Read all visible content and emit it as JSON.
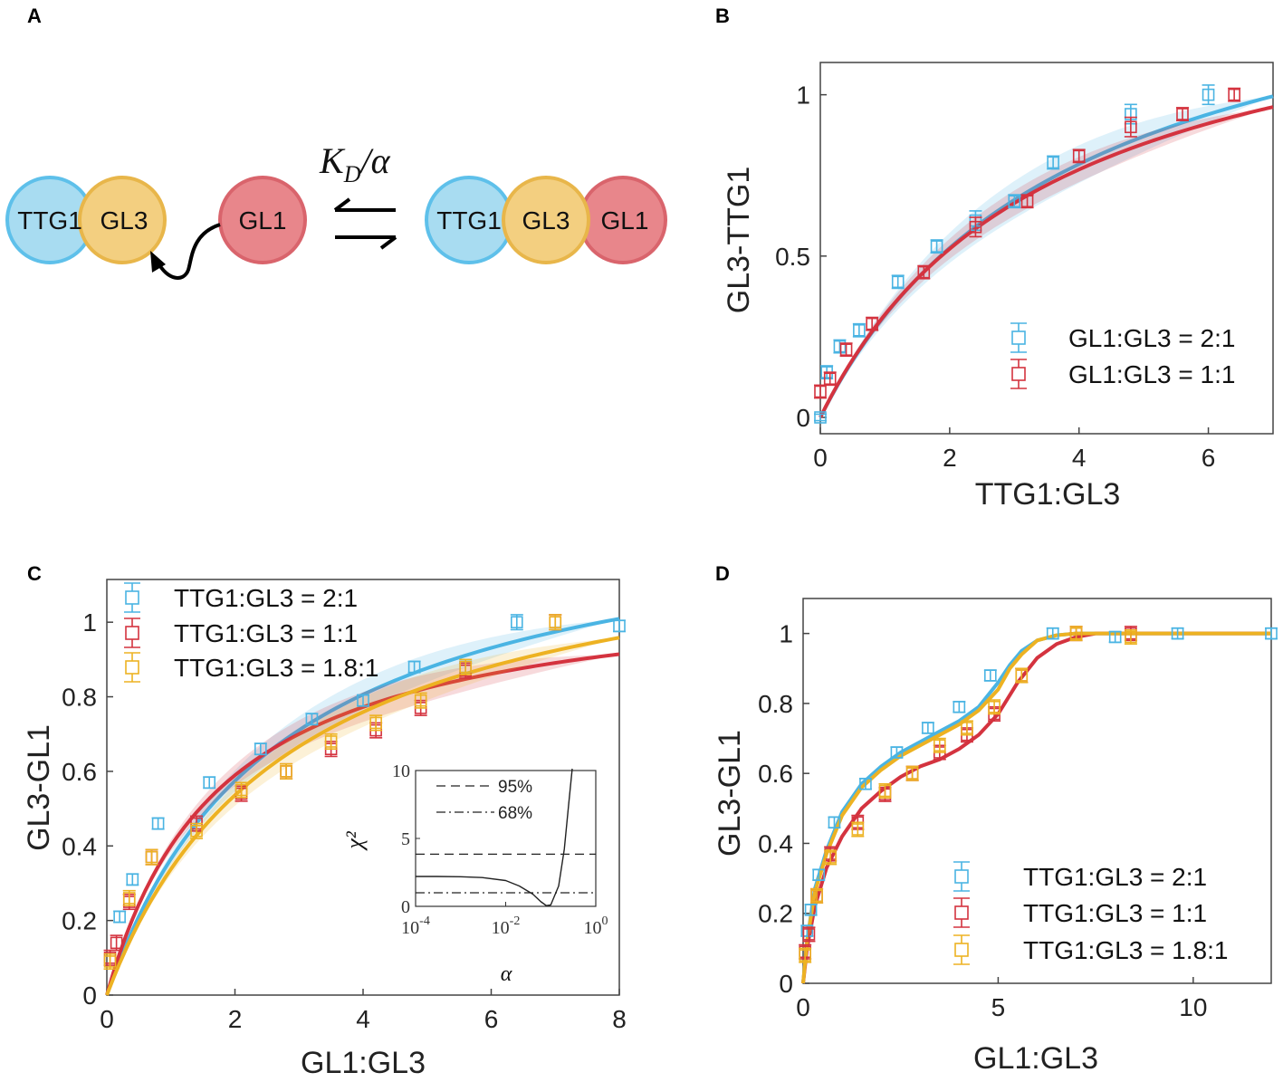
{
  "panels": {
    "A": {
      "letter": "A",
      "left_complex": [
        "TTG1",
        "GL3"
      ],
      "free_protein": "GL1",
      "right_complex": [
        "TTG1",
        "GL3",
        "GL1"
      ],
      "rate_label": {
        "K": "K",
        "sub": "D",
        "rest": "/α"
      }
    },
    "B": {
      "letter": "B"
    },
    "C": {
      "letter": "C"
    },
    "D": {
      "letter": "D"
    }
  },
  "colors": {
    "cyan": "#4ab4e3",
    "red": "#d4333f",
    "orange": "#edb222",
    "ttg1_fill": "#a8dcf1",
    "ttg1_stroke": "#5ec0ea",
    "gl3_fill": "#f3cf80",
    "gl3_stroke": "#e8b64a",
    "gl1_fill": "#e8868b",
    "gl1_stroke": "#d9646c"
  },
  "chart_data": [
    {
      "id": "B",
      "type": "scatter",
      "title": "",
      "xlabel": "TTG1:GL3",
      "ylabel": "GL3-TTG1",
      "xlim": [
        0,
        7
      ],
      "ylim": [
        0,
        1.1
      ],
      "xticks": [
        0,
        2,
        4,
        6
      ],
      "yticks": [
        0,
        0.5,
        1
      ],
      "xtick_labels": [
        "0",
        "2",
        "4",
        "6"
      ],
      "ytick_labels": [
        "0",
        "0.5",
        "1"
      ],
      "legend": [
        "GL1:GL3 = 2:1",
        "GL1:GL3 = 1:1"
      ],
      "legend_position": "bottom-right",
      "series": [
        {
          "name": "GL1:GL3 = 2:1",
          "color": "cyan",
          "x": [
            0,
            0.1,
            0.3,
            0.6,
            1.2,
            1.8,
            2.4,
            3.0,
            3.6,
            4.8,
            6.0
          ],
          "y": [
            0,
            0.14,
            0.22,
            0.27,
            0.42,
            0.53,
            0.61,
            0.67,
            0.79,
            0.94,
            1.0
          ],
          "err": [
            0.01,
            0.02,
            0.02,
            0.02,
            0.02,
            0.02,
            0.03,
            0.02,
            0.02,
            0.03,
            0.03
          ]
        },
        {
          "name": "GL1:GL3 = 1:1",
          "color": "red",
          "x": [
            0,
            0.15,
            0.4,
            0.8,
            1.6,
            2.4,
            3.2,
            4.0,
            4.8,
            5.6,
            6.4
          ],
          "y": [
            0.08,
            0.12,
            0.21,
            0.29,
            0.45,
            0.59,
            0.67,
            0.81,
            0.9,
            0.94,
            1.0
          ],
          "err": [
            0.02,
            0.02,
            0.02,
            0.02,
            0.02,
            0.03,
            0.02,
            0.02,
            0.03,
            0.02,
            0.02
          ]
        }
      ],
      "fits": [
        {
          "name": "GL1:GL3 = 2:1",
          "color": "cyan",
          "model": "saturation",
          "A": 1.55,
          "K": 3.9,
          "band": 0.06
        },
        {
          "name": "GL1:GL3 = 1:1",
          "color": "red",
          "model": "saturation",
          "A": 1.45,
          "K": 3.55,
          "band": 0.04
        }
      ]
    },
    {
      "id": "C",
      "type": "scatter",
      "title": "",
      "xlabel": "GL1:GL3",
      "ylabel": "GL3-GL1",
      "xlim": [
        0,
        8
      ],
      "ylim": [
        0,
        1.1
      ],
      "xticks": [
        0,
        2,
        4,
        6,
        8
      ],
      "yticks": [
        0,
        0.2,
        0.4,
        0.6,
        0.8,
        1
      ],
      "xtick_labels": [
        "0",
        "2",
        "4",
        "6",
        "8"
      ],
      "ytick_labels": [
        "0",
        "0.2",
        "0.4",
        "0.6",
        "0.8",
        "1"
      ],
      "legend": [
        "TTG1:GL3 = 2:1",
        "TTG1:GL3 = 1:1",
        "TTG1:GL3 = 1.8:1"
      ],
      "legend_position": "top-left",
      "series": [
        {
          "name": "TTG1:GL3 = 2:1",
          "color": "cyan",
          "x": [
            0.2,
            0.4,
            0.8,
            1.6,
            2.4,
            3.2,
            4.0,
            4.8,
            5.6,
            6.4,
            8.0
          ],
          "y": [
            0.21,
            0.31,
            0.46,
            0.57,
            0.66,
            0.74,
            0.79,
            0.88,
            0.88,
            1.0,
            0.99
          ],
          "err": [
            0.015,
            0.015,
            0.015,
            0.015,
            0.015,
            0.015,
            0.015,
            0.015,
            0.015,
            0.02,
            0.015
          ]
        },
        {
          "name": "TTG1:GL3 = 1:1",
          "color": "red",
          "x": [
            0.05,
            0.15,
            0.35,
            0.7,
            1.4,
            2.1,
            2.8,
            3.5,
            4.2,
            4.9,
            5.6,
            7.0
          ],
          "y": [
            0.1,
            0.14,
            0.25,
            0.37,
            0.46,
            0.54,
            0.6,
            0.66,
            0.71,
            0.77,
            0.87,
            1.0
          ],
          "err": [
            0.02,
            0.02,
            0.02,
            0.02,
            0.02,
            0.02,
            0.02,
            0.02,
            0.02,
            0.02,
            0.02,
            0.02
          ]
        },
        {
          "name": "TTG1:GL3 = 1.8:1",
          "color": "orange",
          "x": [
            0.05,
            0.35,
            0.7,
            1.4,
            2.1,
            2.8,
            3.5,
            4.2,
            4.9,
            5.6,
            7.0
          ],
          "y": [
            0.09,
            0.26,
            0.37,
            0.44,
            0.55,
            0.6,
            0.68,
            0.73,
            0.79,
            0.88,
            1.0
          ],
          "err": [
            0.02,
            0.02,
            0.02,
            0.02,
            0.02,
            0.02,
            0.02,
            0.02,
            0.02,
            0.02,
            0.02
          ]
        }
      ],
      "fits": [
        {
          "name": "TTG1:GL3 = 2:1",
          "color": "cyan",
          "model": "saturation",
          "A": 1.35,
          "K": 2.7,
          "band": 0.04
        },
        {
          "name": "TTG1:GL3 = 1:1",
          "color": "red",
          "model": "saturation",
          "A": 1.12,
          "K": 1.8,
          "band": 0.04
        },
        {
          "name": "TTG1:GL3 = 1.8:1",
          "color": "orange",
          "model": "saturation",
          "A": 1.3,
          "K": 2.85,
          "band": 0.04
        }
      ],
      "inset": {
        "type": "line",
        "xlabel": "α",
        "ylabel": "χ²",
        "xscale": "log",
        "xlim": [
          0.0001,
          1
        ],
        "ylim": [
          0,
          10
        ],
        "yticks": [
          0,
          5,
          10
        ],
        "ytick_labels": [
          "0",
          "5",
          "10"
        ],
        "xtick_base": [
          "10",
          "10",
          "10"
        ],
        "xtick_exp": [
          "-4",
          "-2",
          "0"
        ],
        "thresholds": [
          {
            "label": "95%",
            "value": 3.84,
            "style": "dashed"
          },
          {
            "label": "68%",
            "value": 1.0,
            "style": "dashdot"
          }
        ],
        "curve": {
          "alpha": [
            0.0001,
            0.0003,
            0.001,
            0.003,
            0.01,
            0.02,
            0.04,
            0.06,
            0.08,
            0.1,
            0.15,
            0.2,
            0.25,
            0.3
          ],
          "chi2": [
            2.2,
            2.2,
            2.18,
            2.12,
            1.9,
            1.5,
            0.9,
            0.35,
            0.05,
            0.1,
            1.5,
            4.2,
            7.5,
            10.5
          ]
        }
      }
    },
    {
      "id": "D",
      "type": "scatter",
      "title": "",
      "xlabel": "GL1:GL3",
      "ylabel": "GL3-GL1",
      "xlim": [
        0,
        12
      ],
      "ylim": [
        0,
        1.1
      ],
      "xticks": [
        0,
        5,
        10
      ],
      "yticks": [
        0,
        0.2,
        0.4,
        0.6,
        0.8,
        1
      ],
      "xtick_labels": [
        "0",
        "5",
        "10"
      ],
      "ytick_labels": [
        "0",
        "0.2",
        "0.4",
        "0.6",
        "0.8",
        "1"
      ],
      "legend": [
        "TTG1:GL3 = 2:1",
        "TTG1:GL3 = 1:1",
        "TTG1:GL3 = 1.8:1"
      ],
      "legend_position": "bottom-right",
      "series": [
        {
          "name": "TTG1:GL3 = 2:1",
          "color": "cyan",
          "x": [
            0.1,
            0.2,
            0.4,
            0.8,
            1.6,
            2.4,
            3.2,
            4.0,
            4.8,
            6.4,
            8.0,
            9.6,
            12.0
          ],
          "y": [
            0.15,
            0.21,
            0.31,
            0.46,
            0.57,
            0.66,
            0.73,
            0.79,
            0.88,
            1.0,
            0.99,
            1.0,
            1.0
          ],
          "err": [
            0.015,
            0.015,
            0.015,
            0.015,
            0.015,
            0.015,
            0.015,
            0.015,
            0.015,
            0.015,
            0.015,
            0.015,
            0.015
          ]
        },
        {
          "name": "TTG1:GL3 = 1:1",
          "color": "red",
          "x": [
            0.05,
            0.15,
            0.35,
            0.7,
            1.4,
            2.1,
            2.8,
            3.5,
            4.2,
            4.9,
            5.6,
            7.0,
            8.4
          ],
          "y": [
            0.09,
            0.14,
            0.25,
            0.37,
            0.46,
            0.54,
            0.6,
            0.66,
            0.71,
            0.77,
            0.88,
            1.0,
            1.0
          ],
          "err": [
            0.02,
            0.02,
            0.02,
            0.02,
            0.02,
            0.02,
            0.02,
            0.02,
            0.02,
            0.02,
            0.02,
            0.02,
            0.02
          ]
        },
        {
          "name": "TTG1:GL3 = 1.8:1",
          "color": "orange",
          "x": [
            0.05,
            0.35,
            0.7,
            1.4,
            2.1,
            2.8,
            3.5,
            4.2,
            4.9,
            5.6,
            7.0,
            8.4
          ],
          "y": [
            0.08,
            0.25,
            0.36,
            0.44,
            0.55,
            0.6,
            0.68,
            0.73,
            0.79,
            0.88,
            1.0,
            0.99
          ],
          "err": [
            0.02,
            0.02,
            0.02,
            0.02,
            0.02,
            0.02,
            0.02,
            0.02,
            0.02,
            0.02,
            0.02,
            0.02
          ]
        }
      ],
      "fits": [
        {
          "name": "TTG1:GL3 = 2:1",
          "color": "cyan",
          "x": [
            0,
            0.1,
            0.3,
            0.6,
            1.0,
            1.5,
            2.0,
            2.5,
            3.0,
            3.5,
            4.0,
            4.5,
            5.0,
            5.3,
            5.6,
            6.0,
            6.5,
            7.0,
            8.0,
            10.0,
            12.0
          ],
          "y": [
            0,
            0.12,
            0.27,
            0.38,
            0.49,
            0.57,
            0.62,
            0.66,
            0.69,
            0.72,
            0.75,
            0.79,
            0.86,
            0.91,
            0.95,
            0.98,
            0.995,
            1.0,
            1.0,
            1.0,
            1.0
          ]
        },
        {
          "name": "TTG1:GL3 = 1:1",
          "color": "red",
          "x": [
            0,
            0.1,
            0.3,
            0.6,
            1.0,
            1.5,
            2.0,
            2.5,
            3.0,
            3.5,
            4.0,
            4.5,
            5.0,
            5.5,
            6.0,
            6.5,
            7.0,
            7.5,
            8.0,
            10.0,
            12.0
          ],
          "y": [
            0,
            0.1,
            0.22,
            0.33,
            0.42,
            0.5,
            0.55,
            0.59,
            0.62,
            0.64,
            0.67,
            0.71,
            0.77,
            0.86,
            0.93,
            0.97,
            0.99,
            1.0,
            1.0,
            1.0,
            1.0
          ]
        },
        {
          "name": "TTG1:GL3 = 1.8:1",
          "color": "orange",
          "x": [
            0,
            0.1,
            0.3,
            0.6,
            1.0,
            1.5,
            2.0,
            2.5,
            3.0,
            3.5,
            4.0,
            4.5,
            5.0,
            5.3,
            5.6,
            6.0,
            6.5,
            7.0,
            8.0,
            10.0,
            12.0
          ],
          "y": [
            0,
            0.12,
            0.26,
            0.37,
            0.48,
            0.56,
            0.61,
            0.65,
            0.68,
            0.71,
            0.74,
            0.78,
            0.84,
            0.9,
            0.94,
            0.98,
            0.995,
            1.0,
            1.0,
            1.0,
            1.0
          ]
        }
      ]
    }
  ]
}
